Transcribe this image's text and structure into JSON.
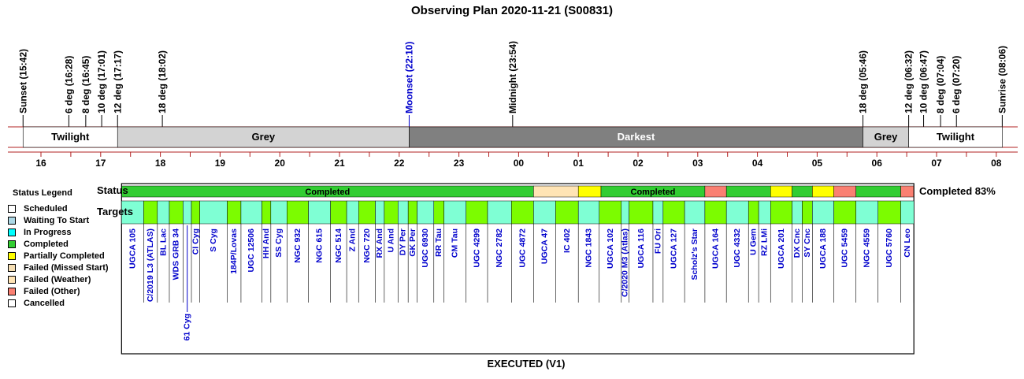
{
  "chart_data": {
    "type": "timeline",
    "title": "Observing Plan 2020-11-21 (S00831)",
    "footer": "EXECUTED (V1)",
    "status_row_label": "Status",
    "targets_row_label": "Targets",
    "status_summary": "Completed 83%",
    "hour_ticks": [
      "16",
      "17",
      "18",
      "19",
      "20",
      "21",
      "22",
      "23",
      "00",
      "01",
      "02",
      "03",
      "04",
      "05",
      "06",
      "07",
      "08"
    ],
    "hour_values": [
      16,
      17,
      18,
      19,
      20,
      21,
      22,
      23,
      24,
      25,
      26,
      27,
      28,
      29,
      30,
      31,
      32
    ],
    "events": [
      {
        "label": "Sunset (15:42)",
        "t": 15.7,
        "color": "#000000"
      },
      {
        "label": "6 deg (16:28)",
        "t": 16.467,
        "color": "#000000"
      },
      {
        "label": "8 deg (16:45)",
        "t": 16.75,
        "color": "#000000"
      },
      {
        "label": "10 deg (17:01)",
        "t": 17.017,
        "color": "#000000"
      },
      {
        "label": "12 deg (17:17)",
        "t": 17.283,
        "color": "#000000"
      },
      {
        "label": "18 deg (18:02)",
        "t": 18.033,
        "color": "#000000"
      },
      {
        "label": "Moonset (22:10)",
        "t": 22.167,
        "color": "#0000cc"
      },
      {
        "label": "Midnight (23:54)",
        "t": 23.9,
        "color": "#000000"
      },
      {
        "label": "18 deg (05:46)",
        "t": 29.767,
        "color": "#000000"
      },
      {
        "label": "12 deg (06:32)",
        "t": 30.533,
        "color": "#000000"
      },
      {
        "label": "10 deg (06:47)",
        "t": 30.783,
        "color": "#000000"
      },
      {
        "label": "8 deg (07:04)",
        "t": 31.067,
        "color": "#000000"
      },
      {
        "label": "6 deg (07:20)",
        "t": 31.333,
        "color": "#000000"
      },
      {
        "label": "Sunrise (08:06)",
        "t": 32.1,
        "color": "#000000"
      }
    ],
    "phases": [
      {
        "label": "Twilight",
        "start": 15.7,
        "end": 17.283,
        "color": "#ffffff",
        "text_color": "#000000"
      },
      {
        "label": "Grey",
        "start": 17.283,
        "end": 22.167,
        "color": "#d3d3d3",
        "text_color": "#000000"
      },
      {
        "label": "Darkest",
        "start": 22.167,
        "end": 29.767,
        "color": "#808080",
        "text_color": "#ffffff"
      },
      {
        "label": "Grey",
        "start": 29.767,
        "end": 30.533,
        "color": "#d3d3d3",
        "text_color": "#000000"
      },
      {
        "label": "Twilight",
        "start": 30.533,
        "end": 32.1,
        "color": "#ffffff",
        "text_color": "#000000"
      }
    ],
    "status_segments": [
      {
        "status": "Completed",
        "start": 17.35,
        "end": 24.25,
        "label": "Completed"
      },
      {
        "status": "Failed (Weather)",
        "start": 24.25,
        "end": 25.0,
        "label": ""
      },
      {
        "status": "Partially Completed",
        "start": 25.0,
        "end": 25.38,
        "label": ""
      },
      {
        "status": "Completed",
        "start": 25.38,
        "end": 27.12,
        "label": "Completed"
      },
      {
        "status": "Failed (Other)",
        "start": 27.12,
        "end": 27.48,
        "label": ""
      },
      {
        "status": "Completed",
        "start": 27.48,
        "end": 28.22,
        "label": ""
      },
      {
        "status": "Partially Completed",
        "start": 28.22,
        "end": 28.58,
        "label": ""
      },
      {
        "status": "Completed",
        "start": 28.58,
        "end": 28.92,
        "label": ""
      },
      {
        "status": "Partially Completed",
        "start": 28.92,
        "end": 29.28,
        "label": ""
      },
      {
        "status": "Failed (Other)",
        "start": 29.28,
        "end": 29.65,
        "label": ""
      },
      {
        "status": "Completed",
        "start": 29.65,
        "end": 30.4,
        "label": ""
      },
      {
        "status": "Failed (Other)",
        "start": 30.4,
        "end": 30.62,
        "label": ""
      }
    ],
    "targets": [
      {
        "name": "UGCA 105",
        "start": 17.35,
        "end": 17.72,
        "done": false,
        "row": 0
      },
      {
        "name": "C/2019 L3 (ATLAS)",
        "start": 17.72,
        "end": 17.95,
        "done": true,
        "row": 0
      },
      {
        "name": "BL Lac",
        "start": 17.95,
        "end": 18.15,
        "done": false,
        "row": 0
      },
      {
        "name": "WDS GRB 34",
        "start": 18.15,
        "end": 18.38,
        "done": true,
        "row": 0
      },
      {
        "name": "61 Cyg",
        "start": 18.38,
        "end": 18.52,
        "done": false,
        "row": 1
      },
      {
        "name": "CI Cyg",
        "start": 18.52,
        "end": 18.66,
        "done": true,
        "row": 0
      },
      {
        "name": "S Cyg",
        "start": 18.66,
        "end": 19.12,
        "done": false,
        "row": 0
      },
      {
        "name": "184P/Lovas",
        "start": 19.12,
        "end": 19.35,
        "done": true,
        "row": 0
      },
      {
        "name": "UGC 12506",
        "start": 19.35,
        "end": 19.7,
        "done": false,
        "row": 0
      },
      {
        "name": "HH And",
        "start": 19.7,
        "end": 19.85,
        "done": true,
        "row": 0
      },
      {
        "name": "SS Cyg",
        "start": 19.85,
        "end": 20.12,
        "done": false,
        "row": 0
      },
      {
        "name": "NGC 932",
        "start": 20.12,
        "end": 20.48,
        "done": true,
        "row": 0
      },
      {
        "name": "NGC 615",
        "start": 20.48,
        "end": 20.85,
        "done": false,
        "row": 0
      },
      {
        "name": "NGC 514",
        "start": 20.85,
        "end": 21.12,
        "done": true,
        "row": 0
      },
      {
        "name": "Z And",
        "start": 21.12,
        "end": 21.32,
        "done": false,
        "row": 0
      },
      {
        "name": "NGC 720",
        "start": 21.32,
        "end": 21.6,
        "done": true,
        "row": 0
      },
      {
        "name": "RX And",
        "start": 21.6,
        "end": 21.75,
        "done": false,
        "row": 0
      },
      {
        "name": "U And",
        "start": 21.75,
        "end": 21.98,
        "done": true,
        "row": 0
      },
      {
        "name": "DY Per",
        "start": 21.98,
        "end": 22.15,
        "done": false,
        "row": 0
      },
      {
        "name": "GK Per",
        "start": 22.15,
        "end": 22.3,
        "done": true,
        "row": 0
      },
      {
        "name": "UGC 6930",
        "start": 22.3,
        "end": 22.58,
        "done": false,
        "row": 0
      },
      {
        "name": "RR Tau",
        "start": 22.58,
        "end": 22.75,
        "done": true,
        "row": 0
      },
      {
        "name": "CM Tau",
        "start": 22.75,
        "end": 23.12,
        "done": false,
        "row": 0
      },
      {
        "name": "UGC 4299",
        "start": 23.12,
        "end": 23.48,
        "done": true,
        "row": 0
      },
      {
        "name": "NGC 2782",
        "start": 23.48,
        "end": 23.88,
        "done": false,
        "row": 0
      },
      {
        "name": "UGC 4872",
        "start": 23.88,
        "end": 24.25,
        "done": true,
        "row": 0
      },
      {
        "name": "UGCA 47",
        "start": 24.25,
        "end": 24.62,
        "done": false,
        "row": 0
      },
      {
        "name": "IC 402",
        "start": 24.62,
        "end": 25.0,
        "done": true,
        "row": 0
      },
      {
        "name": "NGC 1843",
        "start": 25.0,
        "end": 25.35,
        "done": false,
        "row": 0
      },
      {
        "name": "UGCA 102",
        "start": 25.35,
        "end": 25.72,
        "done": true,
        "row": 0
      },
      {
        "name": "C/2020 M3 (Atlas)",
        "start": 25.72,
        "end": 25.85,
        "done": false,
        "row": 0
      },
      {
        "name": "UGCA 116",
        "start": 25.85,
        "end": 26.25,
        "done": true,
        "row": 0
      },
      {
        "name": "FU Ori",
        "start": 26.25,
        "end": 26.42,
        "done": false,
        "row": 0
      },
      {
        "name": "UGCA 127",
        "start": 26.42,
        "end": 26.78,
        "done": true,
        "row": 0
      },
      {
        "name": "Scholz's Star",
        "start": 26.78,
        "end": 27.12,
        "done": false,
        "row": 0
      },
      {
        "name": "UGCA 164",
        "start": 27.12,
        "end": 27.48,
        "done": true,
        "row": 0
      },
      {
        "name": "UGC 4332",
        "start": 27.48,
        "end": 27.85,
        "done": false,
        "row": 0
      },
      {
        "name": "U Gem",
        "start": 27.85,
        "end": 28.02,
        "done": true,
        "row": 0
      },
      {
        "name": "RZ LMi",
        "start": 28.02,
        "end": 28.22,
        "done": false,
        "row": 0
      },
      {
        "name": "UGCA 201",
        "start": 28.22,
        "end": 28.58,
        "done": true,
        "row": 0
      },
      {
        "name": "DX Cnc",
        "start": 28.58,
        "end": 28.75,
        "done": false,
        "row": 0
      },
      {
        "name": "SY Cnc",
        "start": 28.75,
        "end": 28.92,
        "done": true,
        "row": 0
      },
      {
        "name": "UGCA 188",
        "start": 28.92,
        "end": 29.28,
        "done": false,
        "row": 0
      },
      {
        "name": "UGC 5459",
        "start": 29.28,
        "end": 29.65,
        "done": true,
        "row": 0
      },
      {
        "name": "NGC 4559",
        "start": 29.65,
        "end": 30.02,
        "done": false,
        "row": 0
      },
      {
        "name": "UGC 5760",
        "start": 30.02,
        "end": 30.4,
        "done": true,
        "row": 0
      },
      {
        "name": "CN Leo",
        "start": 30.4,
        "end": 30.62,
        "done": false,
        "row": 0
      }
    ],
    "legend": {
      "title": "Status Legend",
      "items": [
        {
          "label": "Scheduled",
          "color": "#ffffff"
        },
        {
          "label": "Waiting To Start",
          "color": "#add8e6"
        },
        {
          "label": "In Progress",
          "color": "#00ffff"
        },
        {
          "label": "Completed",
          "color": "#32cd32"
        },
        {
          "label": "Partially Completed",
          "color": "#ffff00"
        },
        {
          "label": "Failed (Missed Start)",
          "color": "#f5deb3"
        },
        {
          "label": "Failed (Weather)",
          "color": "#ffe4b5"
        },
        {
          "label": "Failed (Other)",
          "color": "#fa8072"
        },
        {
          "label": "Cancelled",
          "color": "#ffffff"
        }
      ]
    },
    "colors": {
      "status": {
        "Completed": "#32cd32",
        "Partially Completed": "#ffff00",
        "Failed (Weather)": "#ffe4b5",
        "Failed (Other)": "#fa8072"
      },
      "target_alt": "#7fffd4",
      "target_done": "#7cfc00",
      "target_text": "#0000cc",
      "band_line": "#b22222"
    }
  }
}
